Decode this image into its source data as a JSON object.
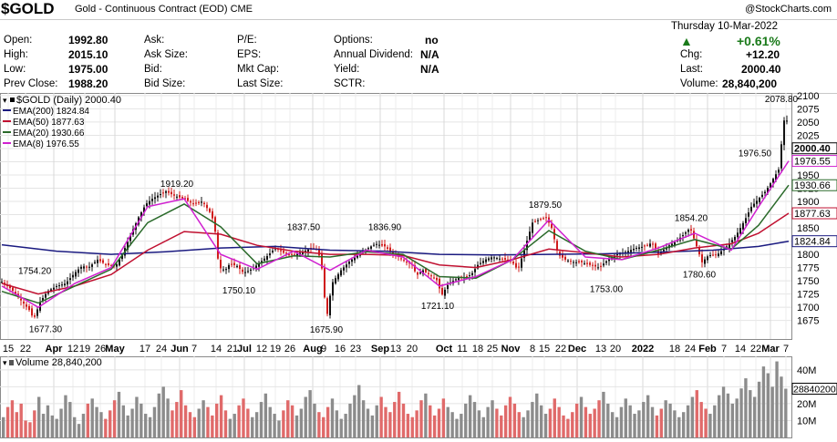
{
  "header": {
    "symbol": "$GOLD",
    "description": "Gold - Continuous Contract (EOD)  CME",
    "copyright": "@StockCharts.com"
  },
  "quote": {
    "left": [
      {
        "label": "Open:",
        "value": "1992.80"
      },
      {
        "label": "High:",
        "value": "2015.10"
      },
      {
        "label": "Low:",
        "value": "1975.00"
      },
      {
        "label": "Prev Close:",
        "value": "1988.20"
      }
    ],
    "mid1": [
      "Ask:",
      "Ask Size:",
      "Bid:",
      "Bid Size:"
    ],
    "mid2": [
      "P/E:",
      "EPS:",
      "Mkt Cap:",
      "Last Size:"
    ],
    "mid3": [
      {
        "label": "Options:",
        "value": "no"
      },
      {
        "label": "Annual Dividend:",
        "value": "N/A"
      },
      {
        "label": "Yield:",
        "value": "N/A"
      },
      {
        "label": "SCTR:",
        "value": ""
      }
    ],
    "date": "Thursday  10-Mar-2022",
    "change_pct": "+0.61%",
    "right": [
      {
        "label": "Chg:",
        "value": "+12.20"
      },
      {
        "label": "Last:",
        "value": "2000.40"
      },
      {
        "label": "Volume:",
        "value": "28,840,200"
      }
    ],
    "up_color": "#1a7a1a"
  },
  "chart_data": [
    {
      "type": "line",
      "panel": "price",
      "legend": [
        {
          "label": "$GOLD (Daily) 2000.40",
          "color": "#000000"
        },
        {
          "label": "EMA(200) 1824.84",
          "color": "#1a1a80"
        },
        {
          "label": "EMA(50) 1877.63",
          "color": "#c01030"
        },
        {
          "label": "EMA(20) 1930.66",
          "color": "#2a6a2a"
        },
        {
          "label": "EMA(8) 1976.55",
          "color": "#d020d0"
        }
      ],
      "ylim": [
        1640,
        2105
      ],
      "y_ticks": [
        1675,
        1700,
        1725,
        1750,
        1775,
        1800,
        1825,
        1850,
        1875,
        1900,
        1925,
        1950,
        1975,
        2000,
        2025,
        2050,
        2075,
        2100
      ],
      "y_tick_labels": [
        "1675",
        "1700",
        "1725",
        "1750",
        "1775",
        "1800",
        "1825",
        "1850",
        "1875",
        "1900",
        "1925",
        "1950",
        "1975",
        "2000",
        "2025",
        "2050",
        "2075",
        "2100"
      ],
      "x_tick_labels": [
        "15",
        "22",
        "Apr",
        "12",
        "19",
        "26",
        "May",
        "17",
        "24",
        "Jun",
        "7",
        "14",
        "21",
        "Jul",
        "12",
        "19",
        "26",
        "Aug",
        "9",
        "16",
        "23",
        "Sep",
        "13",
        "20",
        "Oct",
        "11",
        "18",
        "25",
        "Nov",
        "8",
        "15",
        "22",
        "Dec",
        "13",
        "20",
        "2022",
        "18",
        "24",
        "Feb",
        "7",
        "14",
        "22",
        "Mar",
        "7"
      ],
      "bold_x_labels": [
        "Apr",
        "May",
        "Jun",
        "Jul",
        "Aug",
        "Sep",
        "Oct",
        "Nov",
        "Dec",
        "2022",
        "Feb",
        "Mar"
      ],
      "price_path": [
        [
          0,
          1748
        ],
        [
          10,
          1735
        ],
        [
          20,
          1715
        ],
        [
          30,
          1695
        ],
        [
          35,
          1677.3
        ],
        [
          42,
          1710
        ],
        [
          50,
          1730
        ],
        [
          60,
          1740
        ],
        [
          70,
          1745
        ],
        [
          80,
          1765
        ],
        [
          88,
          1778
        ],
        [
          95,
          1775
        ],
        [
          105,
          1790
        ],
        [
          115,
          1780
        ],
        [
          125,
          1778
        ],
        [
          132,
          1800
        ],
        [
          140,
          1832
        ],
        [
          150,
          1870
        ],
        [
          158,
          1895
        ],
        [
          165,
          1905
        ],
        [
          172,
          1912
        ],
        [
          180,
          1919.2
        ],
        [
          190,
          1910
        ],
        [
          200,
          1905
        ],
        [
          210,
          1895
        ],
        [
          220,
          1900
        ],
        [
          228,
          1880
        ],
        [
          233,
          1860
        ],
        [
          238,
          1775
        ],
        [
          245,
          1770
        ],
        [
          250,
          1782
        ],
        [
          258,
          1778
        ],
        [
          265,
          1765
        ],
        [
          272,
          1770
        ],
        [
          280,
          1780
        ],
        [
          290,
          1795
        ],
        [
          300,
          1812
        ],
        [
          310,
          1802
        ],
        [
          320,
          1798
        ],
        [
          330,
          1805
        ],
        [
          340,
          1812
        ],
        [
          345,
          1810
        ],
        [
          350,
          1790
        ],
        [
          353,
          1740
        ],
        [
          356,
          1675.9
        ],
        [
          362,
          1745
        ],
        [
          372,
          1770
        ],
        [
          382,
          1788
        ],
        [
          392,
          1800
        ],
        [
          402,
          1812
        ],
        [
          410,
          1820
        ],
        [
          420,
          1815
        ],
        [
          430,
          1800
        ],
        [
          440,
          1790
        ],
        [
          450,
          1780
        ],
        [
          455,
          1760
        ],
        [
          462,
          1770
        ],
        [
          470,
          1760
        ],
        [
          478,
          1750
        ],
        [
          482,
          1721.1
        ],
        [
          490,
          1745
        ],
        [
          500,
          1755
        ],
        [
          510,
          1758
        ],
        [
          515,
          1762
        ],
        [
          522,
          1780
        ],
        [
          530,
          1790
        ],
        [
          538,
          1795
        ],
        [
          546,
          1792
        ],
        [
          552,
          1790
        ],
        [
          560,
          1785
        ],
        [
          566,
          1770
        ],
        [
          575,
          1820
        ],
        [
          582,
          1860
        ],
        [
          590,
          1866
        ],
        [
          597,
          1870
        ],
        [
          603,
          1850
        ],
        [
          610,
          1800
        ],
        [
          618,
          1790
        ],
        [
          628,
          1785
        ],
        [
          636,
          1785
        ],
        [
          645,
          1780
        ],
        [
          655,
          1775
        ],
        [
          665,
          1790
        ],
        [
          675,
          1800
        ],
        [
          685,
          1805
        ],
        [
          695,
          1812
        ],
        [
          705,
          1815
        ],
        [
          713,
          1822
        ],
        [
          720,
          1800
        ],
        [
          730,
          1815
        ],
        [
          740,
          1825
        ],
        [
          748,
          1838
        ],
        [
          755,
          1850
        ],
        [
          762,
          1815
        ],
        [
          768,
          1785
        ],
        [
          775,
          1798
        ],
        [
          785,
          1800
        ],
        [
          795,
          1815
        ],
        [
          805,
          1835
        ],
        [
          815,
          1865
        ],
        [
          822,
          1890
        ],
        [
          830,
          1905
        ],
        [
          838,
          1920
        ],
        [
          845,
          1940
        ],
        [
          852,
          1960
        ],
        [
          857,
          2040
        ],
        [
          860,
          2078.8
        ],
        [
          863,
          2000.4
        ]
      ],
      "ema200": [
        [
          0,
          1818
        ],
        [
          60,
          1806
        ],
        [
          120,
          1800
        ],
        [
          180,
          1805
        ],
        [
          240,
          1812
        ],
        [
          300,
          1815
        ],
        [
          360,
          1808
        ],
        [
          420,
          1806
        ],
        [
          480,
          1800
        ],
        [
          540,
          1799
        ],
        [
          600,
          1800
        ],
        [
          660,
          1801
        ],
        [
          720,
          1804
        ],
        [
          780,
          1808
        ],
        [
          830,
          1815
        ],
        [
          863,
          1824.84
        ]
      ],
      "ema50": [
        [
          0,
          1745
        ],
        [
          40,
          1725
        ],
        [
          80,
          1740
        ],
        [
          120,
          1762
        ],
        [
          160,
          1808
        ],
        [
          200,
          1843
        ],
        [
          240,
          1838
        ],
        [
          280,
          1817
        ],
        [
          320,
          1806
        ],
        [
          360,
          1800
        ],
        [
          400,
          1800
        ],
        [
          440,
          1798
        ],
        [
          480,
          1780
        ],
        [
          520,
          1775
        ],
        [
          560,
          1790
        ],
        [
          600,
          1810
        ],
        [
          640,
          1803
        ],
        [
          680,
          1795
        ],
        [
          720,
          1800
        ],
        [
          760,
          1812
        ],
        [
          800,
          1820
        ],
        [
          830,
          1840
        ],
        [
          863,
          1877.63
        ]
      ],
      "ema20": [
        [
          0,
          1730
        ],
        [
          40,
          1708
        ],
        [
          80,
          1740
        ],
        [
          120,
          1772
        ],
        [
          160,
          1860
        ],
        [
          200,
          1895
        ],
        [
          240,
          1852
        ],
        [
          280,
          1782
        ],
        [
          320,
          1797
        ],
        [
          360,
          1795
        ],
        [
          400,
          1805
        ],
        [
          440,
          1800
        ],
        [
          480,
          1758
        ],
        [
          520,
          1755
        ],
        [
          560,
          1790
        ],
        [
          600,
          1845
        ],
        [
          640,
          1806
        ],
        [
          680,
          1790
        ],
        [
          720,
          1808
        ],
        [
          760,
          1828
        ],
        [
          800,
          1810
        ],
        [
          830,
          1855
        ],
        [
          863,
          1930.66
        ]
      ],
      "ema8": [
        [
          0,
          1740
        ],
        [
          40,
          1700
        ],
        [
          80,
          1745
        ],
        [
          120,
          1775
        ],
        [
          160,
          1890
        ],
        [
          200,
          1905
        ],
        [
          240,
          1800
        ],
        [
          280,
          1772
        ],
        [
          320,
          1806
        ],
        [
          360,
          1770
        ],
        [
          400,
          1808
        ],
        [
          440,
          1795
        ],
        [
          480,
          1740
        ],
        [
          520,
          1758
        ],
        [
          560,
          1790
        ],
        [
          600,
          1865
        ],
        [
          640,
          1795
        ],
        [
          680,
          1790
        ],
        [
          720,
          1812
        ],
        [
          760,
          1840
        ],
        [
          800,
          1808
        ],
        [
          830,
          1890
        ],
        [
          863,
          1976.55
        ]
      ],
      "annotations": [
        {
          "text": "1754.20",
          "x": 18,
          "v": 1754.2,
          "anchor": "start"
        },
        {
          "text": "1677.30",
          "x": 48,
          "v": 1677.3,
          "anchor": "middle",
          "below": true
        },
        {
          "text": "1919.20",
          "x": 192,
          "v": 1919.2,
          "anchor": "middle"
        },
        {
          "text": "1750.10",
          "x": 260,
          "v": 1750.1,
          "anchor": "middle",
          "below": true
        },
        {
          "text": "1837.50",
          "x": 331,
          "v": 1837.5,
          "anchor": "middle"
        },
        {
          "text": "1675.90",
          "x": 356,
          "v": 1675.9,
          "anchor": "middle",
          "below": true
        },
        {
          "text": "1836.90",
          "x": 420,
          "v": 1836.9,
          "anchor": "middle"
        },
        {
          "text": "1721.10",
          "x": 478,
          "v": 1721.1,
          "anchor": "middle",
          "below": true
        },
        {
          "text": "1879.50",
          "x": 596,
          "v": 1879.5,
          "anchor": "middle"
        },
        {
          "text": "1753.00",
          "x": 663,
          "v": 1753.0,
          "anchor": "middle",
          "below": true
        },
        {
          "text": "1854.20",
          "x": 756,
          "v": 1854.2,
          "anchor": "middle"
        },
        {
          "text": "1780.60",
          "x": 765,
          "v": 1780.6,
          "anchor": "middle",
          "below": true
        },
        {
          "text": "1976.50",
          "x": 826,
          "v": 1976.5,
          "anchor": "middle"
        },
        {
          "text": "2078.80",
          "x": 855,
          "v": 2078.8,
          "anchor": "middle"
        }
      ],
      "last_price_box": {
        "text": "2000.40",
        "v": 2000.4
      },
      "ema_boxes": [
        {
          "text": "1976.55",
          "v": 1976.55,
          "color": "#d020d0"
        },
        {
          "text": "1930.66",
          "v": 1930.66,
          "color": "#2a6a2a"
        },
        {
          "text": "1877.63",
          "v": 1877.63,
          "color": "#c01030"
        },
        {
          "text": "1824.84",
          "v": 1824.84,
          "color": "#1a1a80"
        }
      ]
    },
    {
      "type": "bar",
      "panel": "volume",
      "legend_label": "Volume 28,840,200",
      "ylim": [
        0,
        48
      ],
      "y_tick_labels": [
        "40M",
        "30M",
        "20M",
        "10M"
      ],
      "y_ticks": [
        40,
        30,
        20,
        10
      ],
      "last_volume_box": "28840200",
      "last_volume_value_m": 28.84,
      "volume_m_seed": [
        12,
        18,
        22,
        15,
        20,
        10,
        9,
        16,
        24,
        14,
        19,
        13,
        11,
        17,
        25,
        21,
        12,
        8,
        14,
        20,
        23,
        18,
        15,
        11,
        16,
        22,
        27,
        19,
        13,
        17,
        24,
        20,
        14,
        12,
        18,
        26,
        30,
        23,
        16,
        21,
        28,
        19,
        15,
        12,
        17,
        22,
        18,
        13,
        20,
        25,
        16,
        11,
        14,
        19,
        23,
        17,
        12,
        15,
        21,
        26,
        18,
        14,
        10,
        16,
        22,
        19,
        13,
        17,
        24,
        28,
        20,
        15,
        12,
        18,
        23,
        16,
        11,
        14,
        20,
        25,
        31,
        22,
        17,
        13,
        19,
        24,
        18,
        15,
        21,
        27,
        20,
        14,
        12,
        16,
        22,
        26,
        19,
        13,
        17,
        23,
        18,
        15,
        11,
        14,
        20,
        25,
        21,
        16,
        12,
        18,
        22,
        17,
        13,
        19,
        24,
        20,
        15,
        12,
        16,
        21,
        26,
        19,
        14,
        17,
        23,
        18,
        13,
        11,
        15,
        20,
        24,
        18,
        14,
        17,
        22,
        27,
        20,
        15,
        12,
        18,
        23,
        19,
        14,
        16,
        21,
        25,
        18,
        13,
        17,
        22,
        20,
        16,
        12,
        15,
        19,
        24,
        28,
        21,
        17,
        14,
        19,
        25,
        30,
        26,
        20,
        23,
        29,
        35,
        28,
        24,
        33,
        42,
        38,
        30,
        45,
        36,
        28.84
      ]
    }
  ]
}
